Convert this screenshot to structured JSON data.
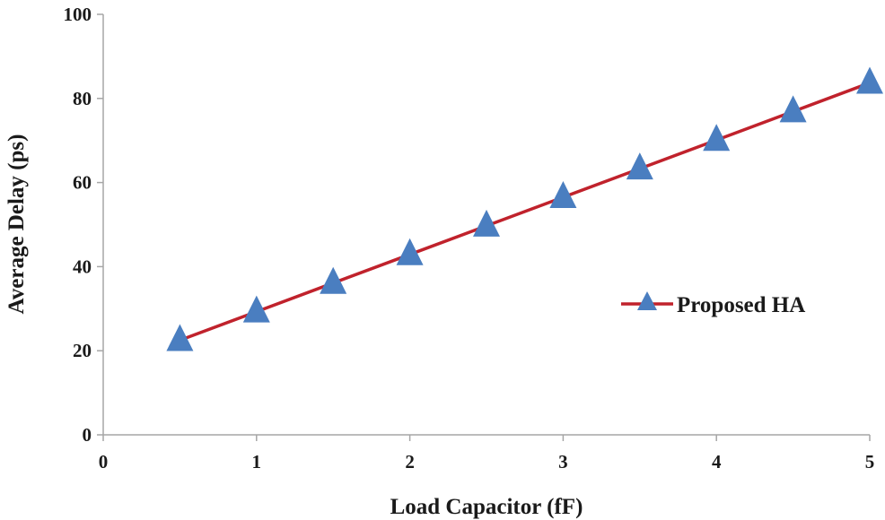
{
  "chart_data": {
    "type": "line",
    "title": "",
    "xlabel": "Load Capacitor (fF)",
    "ylabel": "Average Delay (ps)",
    "xlim": [
      0,
      5
    ],
    "ylim": [
      0,
      100
    ],
    "xticks": [
      0,
      1,
      2,
      3,
      4,
      5
    ],
    "yticks": [
      0,
      20,
      40,
      60,
      80,
      100
    ],
    "xtick_labels": [
      "0",
      "1",
      "2",
      "3",
      "4",
      "5"
    ],
    "ytick_labels": [
      "0",
      "20",
      "40",
      "60",
      "80",
      "100"
    ],
    "grid": false,
    "legend_position": "right",
    "series": [
      {
        "name": "Proposed HA",
        "x": [
          0.5,
          1.0,
          1.5,
          2.0,
          2.5,
          3.0,
          3.5,
          4.0,
          4.5,
          5.0
        ],
        "y": [
          22.5,
          29.3,
          36.1,
          42.9,
          49.7,
          56.5,
          63.3,
          70.1,
          76.9,
          83.7
        ],
        "line_color": "#c0222c",
        "marker": "triangle",
        "marker_color": "#4a7ec0"
      }
    ]
  }
}
